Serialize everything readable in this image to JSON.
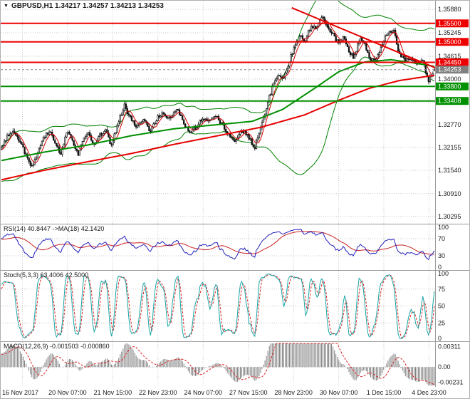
{
  "meta": {
    "bg": "#ffffff",
    "grid_color": "#c8c8c8",
    "axis_line_color": "#9a9a9a",
    "text_color": "#1a1a1a"
  },
  "header": {
    "collapse_icon": "▼",
    "title": "GBPUSD,H1 1.34217 1.34257 1.34213 1.34253"
  },
  "x_axis": {
    "labels": [
      "16 Nov 2017",
      "20 Nov 07:00",
      "21 Nov 15:00",
      "22 Nov 23:00",
      "24 Nov 07:00",
      "27 Nov 15:00",
      "28 Nov 23:00",
      "30 Nov 07:00",
      "1 Dec 15:00",
      "4 Dec 23:00"
    ],
    "fracs": [
      0.05,
      0.154,
      0.258,
      0.362,
      0.466,
      0.57,
      0.674,
      0.778,
      0.882,
      0.986
    ]
  },
  "chart_data": [
    {
      "type": "candlestick",
      "panel": "price",
      "symbol": "GBPUSD",
      "timeframe": "H1",
      "ohlc_values": [
        1.34217,
        1.34257,
        1.34213,
        1.34253
      ],
      "ylim": [
        1.301,
        1.3611
      ],
      "y_ticks": [
        {
          "v": 1.3588,
          "label": "1.35880"
        },
        {
          "v": 1.35245,
          "label": "1.35245"
        },
        {
          "v": 1.34615,
          "label": "1.34615"
        },
        {
          "v": 1.34,
          "label": "1.34000"
        },
        {
          "v": 1.3337,
          "label": "1.33370"
        },
        {
          "v": 1.3277,
          "label": "1.32770"
        },
        {
          "v": 1.32155,
          "label": "1.32155"
        },
        {
          "v": 1.3154,
          "label": "1.31540"
        },
        {
          "v": 1.3091,
          "label": "1.30910"
        },
        {
          "v": 1.30295,
          "label": "1.30295"
        }
      ],
      "levels": [
        {
          "value": 1.355,
          "label": "1.35500",
          "color": "#ee0000",
          "width": 2
        },
        {
          "value": 1.35,
          "label": "1.35000",
          "color": "#ee0000",
          "width": 2
        },
        {
          "value": 1.3445,
          "label": "1.34450",
          "color": "#ee0000",
          "width": 2
        },
        {
          "value": 1.338,
          "label": "1.33800",
          "color": "#009000",
          "width": 2
        },
        {
          "value": 1.33408,
          "label": "1.33408",
          "color": "#009000",
          "width": 2
        }
      ],
      "current_price": {
        "value": 1.34253,
        "label": "1.34253",
        "color": "#808080"
      },
      "trendline": {
        "from": [
          0.67,
          1.3592
        ],
        "to": [
          1.005,
          1.3428
        ],
        "color": "#e60000",
        "width": 2
      },
      "overlays": {
        "ma_green": {
          "color": "#009000",
          "width": 2,
          "path": [
            [
              0.0,
              1.318
            ],
            [
              0.1,
              1.3203
            ],
            [
              0.2,
              1.3222
            ],
            [
              0.3,
              1.3247
            ],
            [
              0.4,
              1.3266
            ],
            [
              0.5,
              1.3277
            ],
            [
              0.58,
              1.3286
            ],
            [
              0.65,
              1.3318
            ],
            [
              0.72,
              1.3372
            ],
            [
              0.78,
              1.342
            ],
            [
              0.84,
              1.3446
            ],
            [
              0.9,
              1.3452
            ],
            [
              0.95,
              1.3444
            ],
            [
              1.0,
              1.3434
            ]
          ]
        },
        "ma_red": {
          "color": "#e60000",
          "width": 2,
          "path": [
            [
              0.0,
              1.3128
            ],
            [
              0.1,
              1.3154
            ],
            [
              0.2,
              1.3177
            ],
            [
              0.3,
              1.3199
            ],
            [
              0.4,
              1.3224
            ],
            [
              0.5,
              1.3247
            ],
            [
              0.6,
              1.327
            ],
            [
              0.7,
              1.3303
            ],
            [
              0.78,
              1.3343
            ],
            [
              0.85,
              1.3375
            ],
            [
              0.92,
              1.3396
            ],
            [
              1.0,
              1.341
            ]
          ]
        },
        "bb": {
          "color": "#008000",
          "period": 50,
          "deviation": 2
        },
        "ma_thin_red": {
          "color": "#d40000",
          "period": 6
        }
      },
      "pre_path": [
        [
          -0.7,
          1.2958
        ],
        [
          -0.55,
          1.3005
        ],
        [
          -0.4,
          1.3045
        ],
        [
          -0.3,
          1.3075
        ],
        [
          -0.2,
          1.3115
        ],
        [
          -0.12,
          1.3152
        ],
        [
          -0.06,
          1.3182
        ],
        [
          -0.02,
          1.32
        ]
      ],
      "price_path": [
        [
          0.0,
          1.3215
        ],
        [
          0.015,
          1.3245
        ],
        [
          0.03,
          1.3262
        ],
        [
          0.045,
          1.3228
        ],
        [
          0.058,
          1.3195
        ],
        [
          0.072,
          1.3162
        ],
        [
          0.085,
          1.32
        ],
        [
          0.1,
          1.3242
        ],
        [
          0.112,
          1.3262
        ],
        [
          0.125,
          1.3228
        ],
        [
          0.138,
          1.3196
        ],
        [
          0.152,
          1.3258
        ],
        [
          0.165,
          1.3235
        ],
        [
          0.178,
          1.3198
        ],
        [
          0.19,
          1.3232
        ],
        [
          0.203,
          1.3255
        ],
        [
          0.215,
          1.3222
        ],
        [
          0.228,
          1.325
        ],
        [
          0.242,
          1.3262
        ],
        [
          0.255,
          1.3218
        ],
        [
          0.27,
          1.3282
        ],
        [
          0.285,
          1.3328
        ],
        [
          0.3,
          1.3292
        ],
        [
          0.315,
          1.327
        ],
        [
          0.33,
          1.329
        ],
        [
          0.345,
          1.3258
        ],
        [
          0.36,
          1.3294
        ],
        [
          0.375,
          1.3308
        ],
        [
          0.39,
          1.3292
        ],
        [
          0.405,
          1.332
        ],
        [
          0.42,
          1.3288
        ],
        [
          0.435,
          1.3252
        ],
        [
          0.45,
          1.327
        ],
        [
          0.465,
          1.3295
        ],
        [
          0.48,
          1.3285
        ],
        [
          0.495,
          1.3302
        ],
        [
          0.51,
          1.3278
        ],
        [
          0.525,
          1.3252
        ],
        [
          0.54,
          1.3232
        ],
        [
          0.555,
          1.3262
        ],
        [
          0.57,
          1.3248
        ],
        [
          0.585,
          1.3215
        ],
        [
          0.6,
          1.3268
        ],
        [
          0.615,
          1.3335
        ],
        [
          0.628,
          1.3385
        ],
        [
          0.64,
          1.3415
        ],
        [
          0.652,
          1.3398
        ],
        [
          0.665,
          1.3448
        ],
        [
          0.678,
          1.3488
        ],
        [
          0.69,
          1.3515
        ],
        [
          0.702,
          1.3505
        ],
        [
          0.715,
          1.3542
        ],
        [
          0.728,
          1.3534
        ],
        [
          0.74,
          1.357
        ],
        [
          0.752,
          1.3548
        ],
        [
          0.765,
          1.352
        ],
        [
          0.778,
          1.3498
        ],
        [
          0.79,
          1.3512
        ],
        [
          0.802,
          1.3478
        ],
        [
          0.815,
          1.3455
        ],
        [
          0.828,
          1.3512
        ],
        [
          0.84,
          1.349
        ],
        [
          0.855,
          1.3448
        ],
        [
          0.87,
          1.3462
        ],
        [
          0.89,
          1.3522
        ],
        [
          0.905,
          1.3535
        ],
        [
          0.918,
          1.3472
        ],
        [
          0.932,
          1.3448
        ],
        [
          0.946,
          1.3456
        ],
        [
          0.96,
          1.344
        ],
        [
          0.974,
          1.345
        ],
        [
          0.985,
          1.3392
        ],
        [
          1.0,
          1.3425
        ]
      ],
      "render": {
        "visible_bars": 300,
        "seed": 11,
        "body_amp": 0.00055,
        "wick_amp": 0.00075,
        "t_start": -0.7
      },
      "colors": {
        "bull": "#ffffff",
        "bear": "#111111",
        "outline": "#111111"
      }
    },
    {
      "type": "line",
      "panel": "rsi",
      "label": "RSI(14) 40.8447 ->MA(18) 42.1420",
      "value": 40.8447,
      "ma_value": 42.142,
      "period": 14,
      "ma_period": 18,
      "ylim": [
        0,
        100
      ],
      "y_ticks": [
        {
          "v": 100,
          "label": "100"
        },
        {
          "v": 70,
          "label": "70",
          "dotted": true
        },
        {
          "v": 30,
          "label": "30",
          "dotted": true
        },
        {
          "v": 0,
          "label": "0"
        }
      ],
      "colors": {
        "main": "#2020bb",
        "signal": "#cc2020"
      }
    },
    {
      "type": "line",
      "panel": "stochastic",
      "label": "Stoch(5,3,3) 63.4006 42.5000",
      "value": 63.4006,
      "signal_value": 42.5,
      "k_period": 5,
      "d_period": 3,
      "slowing": 3,
      "ylim": [
        0,
        100
      ],
      "y_ticks": [
        {
          "v": 100,
          "label": "100"
        },
        {
          "v": 75,
          "label": "75",
          "dotted": true
        },
        {
          "v": 50,
          "label": "50",
          "dotted": true
        },
        {
          "v": 25,
          "label": "25",
          "dotted": true
        },
        {
          "v": 0,
          "label": "0"
        }
      ],
      "colors": {
        "main": "#18a5a5",
        "signal": "#dd2222"
      }
    },
    {
      "type": "histogram",
      "panel": "macd",
      "label": "MACD(12,26,9) -0.001503 -0.000860",
      "value": -0.001503,
      "signal_value": -0.00086,
      "fast": 12,
      "slow": 26,
      "signal": 9,
      "display_gain": 1.7,
      "ylim": [
        -0.0028,
        0.0036
      ],
      "y_ticks": [
        {
          "v": 0.00311,
          "label": "0.00311"
        },
        {
          "v": 0,
          "label": "0.00",
          "dotted": true
        },
        {
          "v": -0.00231,
          "label": "-0.00231"
        }
      ],
      "colors": {
        "hist": "#7d7d7d",
        "signal": "#dd2222"
      }
    }
  ]
}
